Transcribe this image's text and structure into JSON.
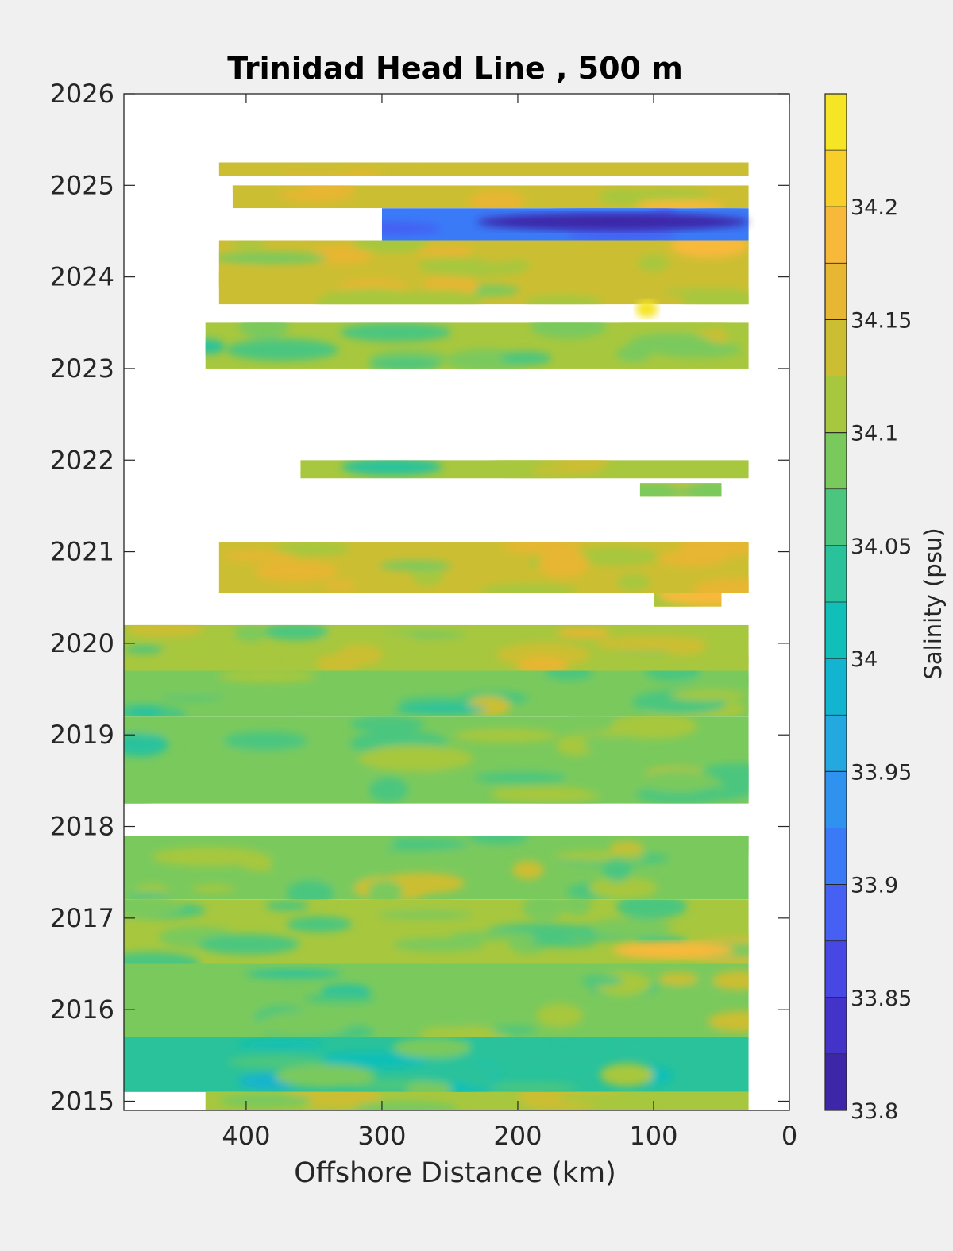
{
  "chart_data": {
    "type": "heatmap",
    "subtype": "filled-contour",
    "title": "Trinidad Head Line , 500 m",
    "xlabel": "Offshore Distance (km)",
    "ylabel": "",
    "xlim": [
      490,
      0
    ],
    "ylim": [
      2014.9,
      2026
    ],
    "x_reversed": true,
    "xticks": [
      400,
      300,
      200,
      100,
      0
    ],
    "xtick_labels": [
      "400",
      "300",
      "200",
      "100",
      "0"
    ],
    "yticks": [
      2015,
      2016,
      2017,
      2018,
      2019,
      2020,
      2021,
      2022,
      2023,
      2024,
      2025,
      2026
    ],
    "ytick_labels": [
      "2015",
      "2016",
      "2017",
      "2018",
      "2019",
      "2020",
      "2021",
      "2022",
      "2023",
      "2024",
      "2025",
      "2026"
    ],
    "colorbar": {
      "label": "Salinity (psu)",
      "range": [
        33.8,
        34.25
      ],
      "levels": [
        33.8,
        33.825,
        33.85,
        33.875,
        33.9,
        33.925,
        33.95,
        33.975,
        34.0,
        34.025,
        34.05,
        34.075,
        34.1,
        34.125,
        34.15,
        34.175,
        34.2,
        34.225,
        34.25
      ],
      "colors": [
        "#3e26a8",
        "#4433c8",
        "#4748e4",
        "#4560f3",
        "#3a7af7",
        "#2f92ee",
        "#24a8e0",
        "#12b4cf",
        "#0fbfb8",
        "#29c29b",
        "#4cc67f",
        "#7ac95d",
        "#a7c73e",
        "#ccbe32",
        "#e7b632",
        "#f8b93b",
        "#f8cf2a",
        "#f5e524"
      ],
      "tick_values": [
        33.8,
        33.85,
        33.9,
        33.95,
        34.0,
        34.05,
        34.1,
        34.15,
        34.2
      ],
      "tick_labels": [
        "33.8",
        "33.85",
        "33.9",
        "33.95",
        "34",
        "34.05",
        "34.1",
        "34.15",
        "34.2"
      ]
    },
    "data_coverage": [
      {
        "t_start": 2014.9,
        "t_end": 2015.1,
        "x_from": 430,
        "x_to": 30,
        "mean_salinity": 34.11
      },
      {
        "t_start": 2015.1,
        "t_end": 2015.7,
        "x_from": 490,
        "x_to": 30,
        "mean_salinity": 34.05
      },
      {
        "t_start": 2015.7,
        "t_end": 2016.5,
        "x_from": 490,
        "x_to": 30,
        "mean_salinity": 34.08
      },
      {
        "t_start": 2016.5,
        "t_end": 2017.2,
        "x_from": 490,
        "x_to": 30,
        "mean_salinity": 34.1
      },
      {
        "t_start": 2017.2,
        "t_end": 2017.9,
        "x_from": 490,
        "x_to": 30,
        "mean_salinity": 34.09
      },
      {
        "t_start": 2018.25,
        "t_end": 2019.2,
        "x_from": 490,
        "x_to": 30,
        "mean_salinity": 34.08
      },
      {
        "t_start": 2019.2,
        "t_end": 2019.7,
        "x_from": 490,
        "x_to": 30,
        "mean_salinity": 34.09
      },
      {
        "t_start": 2019.7,
        "t_end": 2020.2,
        "x_from": 490,
        "x_to": 30,
        "mean_salinity": 34.12
      },
      {
        "t_start": 2020.4,
        "t_end": 2020.55,
        "x_from": 100,
        "x_to": 50,
        "mean_salinity": 34.13
      },
      {
        "t_start": 2020.55,
        "t_end": 2021.1,
        "x_from": 420,
        "x_to": 30,
        "mean_salinity": 34.13
      },
      {
        "t_start": 2021.6,
        "t_end": 2021.75,
        "x_from": 110,
        "x_to": 50,
        "mean_salinity": 34.11
      },
      {
        "t_start": 2021.8,
        "t_end": 2022.0,
        "x_from": 360,
        "x_to": 30,
        "mean_salinity": 34.1
      },
      {
        "t_start": 2023.0,
        "t_end": 2023.5,
        "x_from": 430,
        "x_to": 30,
        "mean_salinity": 34.1
      },
      {
        "t_start": 2023.7,
        "t_end": 2024.4,
        "x_from": 420,
        "x_to": 30,
        "mean_salinity": 34.13
      },
      {
        "t_start": 2024.4,
        "t_end": 2024.75,
        "x_from": 300,
        "x_to": 30,
        "mean_salinity": 33.9
      },
      {
        "t_start": 2024.75,
        "t_end": 2025.0,
        "x_from": 410,
        "x_to": 30,
        "mean_salinity": 34.14
      },
      {
        "t_start": 2025.1,
        "t_end": 2025.25,
        "x_from": 420,
        "x_to": 30,
        "mean_salinity": 34.14
      }
    ],
    "features": [
      {
        "t": 2024.6,
        "x_from": 230,
        "x_to": 30,
        "salinity": 33.82
      },
      {
        "t": 2023.65,
        "x_from": 110,
        "x_to": 100,
        "salinity": 34.23
      },
      {
        "t": 2016.65,
        "x_from": 130,
        "x_to": 40,
        "salinity": 34.19
      }
    ]
  }
}
